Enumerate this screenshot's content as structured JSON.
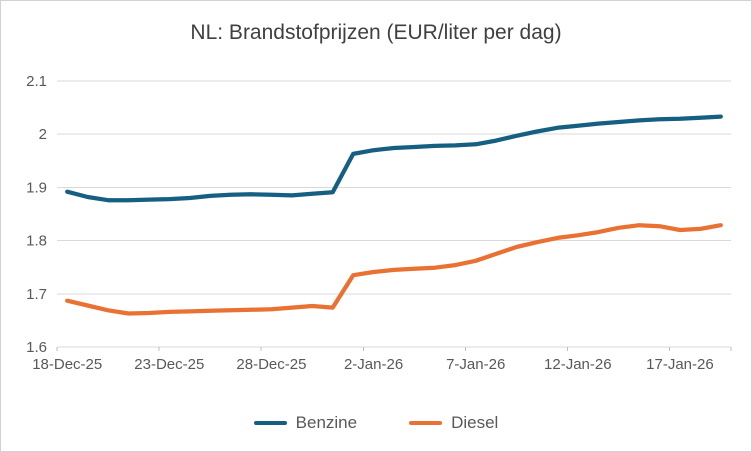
{
  "chart_data": {
    "type": "line",
    "title": "NL: Brandstofprijzen (EUR/liter per dag)",
    "x": [
      "18-Dec-25",
      "19-Dec-25",
      "20-Dec-25",
      "21-Dec-25",
      "22-Dec-25",
      "23-Dec-25",
      "24-Dec-25",
      "25-Dec-25",
      "26-Dec-25",
      "27-Dec-25",
      "28-Dec-25",
      "29-Dec-25",
      "30-Dec-25",
      "31-Dec-25",
      "1-Jan-26",
      "2-Jan-26",
      "3-Jan-26",
      "4-Jan-26",
      "5-Jan-26",
      "6-Jan-26",
      "7-Jan-26",
      "8-Jan-26",
      "9-Jan-26",
      "10-Jan-26",
      "11-Jan-26",
      "12-Jan-26",
      "13-Jan-26",
      "14-Jan-26",
      "15-Jan-26",
      "16-Jan-26",
      "17-Jan-26",
      "18-Jan-26",
      "19-Jan-26"
    ],
    "x_tick_labels": [
      "18-Dec-25",
      "23-Dec-25",
      "28-Dec-25",
      "2-Jan-26",
      "7-Jan-26",
      "12-Jan-26",
      "17-Jan-26"
    ],
    "x_tick_every": 5,
    "series": [
      {
        "name": "Benzine",
        "color": "#156082",
        "values": [
          1.892,
          1.882,
          1.876,
          1.876,
          1.877,
          1.878,
          1.88,
          1.884,
          1.886,
          1.887,
          1.886,
          1.885,
          1.888,
          1.891,
          1.963,
          1.97,
          1.974,
          1.976,
          1.978,
          1.979,
          1.981,
          1.988,
          1.997,
          2.005,
          2.012,
          2.016,
          2.02,
          2.023,
          2.026,
          2.028,
          2.029,
          2.031,
          2.033
        ]
      },
      {
        "name": "Diesel",
        "color": "#E97132",
        "values": [
          1.687,
          1.678,
          1.669,
          1.663,
          1.664,
          1.666,
          1.667,
          1.668,
          1.669,
          1.67,
          1.671,
          1.674,
          1.677,
          1.674,
          1.735,
          1.741,
          1.745,
          1.747,
          1.749,
          1.754,
          1.762,
          1.775,
          1.788,
          1.797,
          1.805,
          1.81,
          1.816,
          1.824,
          1.829,
          1.827,
          1.82,
          1.822,
          1.829
        ]
      }
    ],
    "ylim": [
      1.6,
      2.1
    ],
    "y_ticks": [
      {
        "value": 2.1,
        "label": "2.1"
      },
      {
        "value": 2.0,
        "label": "2"
      },
      {
        "value": 1.9,
        "label": "1.9"
      },
      {
        "value": 1.8,
        "label": "1.8"
      },
      {
        "value": 1.7,
        "label": "1.7"
      },
      {
        "value": 1.6,
        "label": "1.6"
      }
    ],
    "grid": true,
    "legend_position": "bottom",
    "ylabel": "",
    "xlabel": ""
  },
  "style": {
    "background": "#FFFFFF",
    "border_color": "#D2D2D2",
    "grid_color": "#D9D9D9",
    "tick_color": "#BFBFBF",
    "axis_text_color": "#595959",
    "title_color": "#404040",
    "line_width": 4.25
  }
}
